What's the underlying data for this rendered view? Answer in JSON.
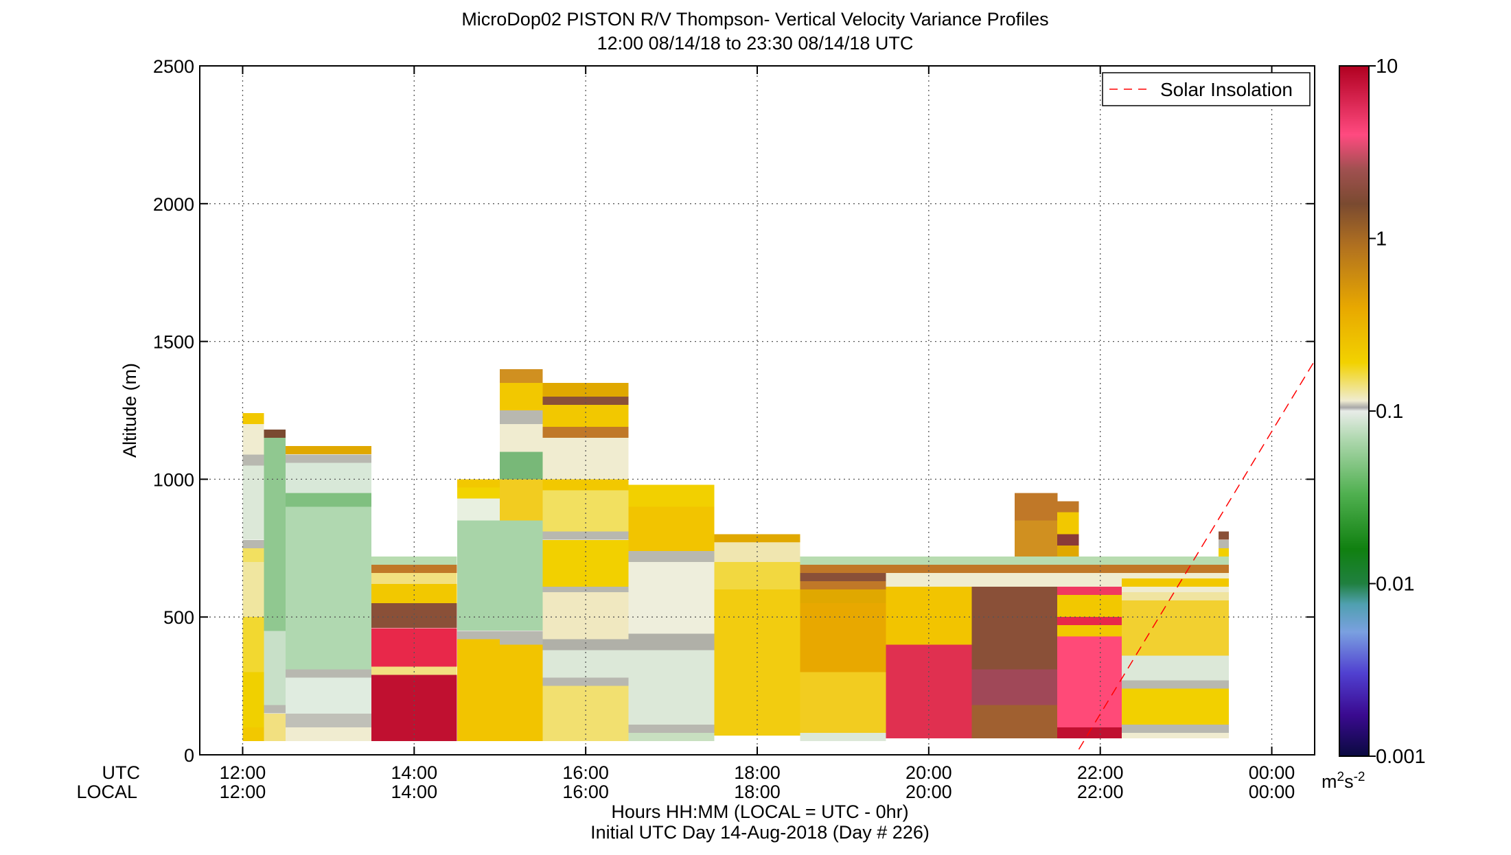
{
  "chart_data": {
    "type": "heatmap",
    "title": "MicroDop02 PISTON R/V Thompson- Vertical Velocity Variance Profiles",
    "subtitle": "12:00 08/14/18 to 23:30 08/14/18  UTC",
    "ylabel": "Altitude (m)",
    "xlabel": "Hours HH:MM  (LOCAL = UTC - 0hr)",
    "xlabel2": "Initial UTC Day 14-Aug-2018 (Day # 226)",
    "row_label_utc": "UTC",
    "row_label_local": "LOCAL",
    "xlim_hours": [
      11.5,
      24.5
    ],
    "ylim": [
      0,
      2500
    ],
    "yticks": [
      0,
      500,
      1000,
      1500,
      2000,
      2500
    ],
    "xticks_utc": [
      "12:00",
      "14:00",
      "16:00",
      "18:00",
      "20:00",
      "22:00",
      "00:00"
    ],
    "xticks_local": [
      "12:00",
      "14:00",
      "16:00",
      "18:00",
      "20:00",
      "22:00",
      "00:00"
    ],
    "xticks_hours": [
      12,
      14,
      16,
      18,
      20,
      22,
      24
    ],
    "grid": true,
    "legend": {
      "position": "top-right",
      "entries": [
        "Solar Insolation"
      ]
    },
    "solar_line": {
      "color": "#ff0000",
      "style": "dashed",
      "points": [
        [
          21.75,
          20
        ],
        [
          24.5,
          1430
        ]
      ]
    },
    "colorbar": {
      "scale": "log",
      "range": [
        0.001,
        10
      ],
      "ticks": [
        "10",
        "1",
        "0.1",
        "0.01",
        "0.001"
      ],
      "unit": "m2s-2",
      "unit_base": "m",
      "unit_sup1": "2",
      "unit_mid": "s",
      "unit_sup2": "-2",
      "stops": [
        {
          "p": 0.0,
          "color": "#0a0a40"
        },
        {
          "p": 0.06,
          "color": "#3a0a90"
        },
        {
          "p": 0.12,
          "color": "#5040d0"
        },
        {
          "p": 0.18,
          "color": "#7aa0e0"
        },
        {
          "p": 0.22,
          "color": "#50a0b0"
        },
        {
          "p": 0.25,
          "color": "#208040"
        },
        {
          "p": 0.3,
          "color": "#108010"
        },
        {
          "p": 0.38,
          "color": "#50b050"
        },
        {
          "p": 0.46,
          "color": "#b0d8b0"
        },
        {
          "p": 0.5,
          "color": "#e8ece8"
        },
        {
          "p": 0.505,
          "color": "#a8a8a8"
        },
        {
          "p": 0.515,
          "color": "#f0ecd0"
        },
        {
          "p": 0.57,
          "color": "#f2d200"
        },
        {
          "p": 0.65,
          "color": "#e8a800"
        },
        {
          "p": 0.74,
          "color": "#b07020"
        },
        {
          "p": 0.8,
          "color": "#7a4a30"
        },
        {
          "p": 0.85,
          "color": "#a05050"
        },
        {
          "p": 0.9,
          "color": "#ff4a80"
        },
        {
          "p": 1.0,
          "color": "#b00020"
        }
      ]
    },
    "columns": [
      {
        "t0": 12.0,
        "t1": 12.25,
        "top": 1240,
        "cells": [
          {
            "y0": 50,
            "y1": 100,
            "c": "#f2c800"
          },
          {
            "y0": 100,
            "y1": 300,
            "c": "#f0d000"
          },
          {
            "y0": 300,
            "y1": 500,
            "c": "#f2d830"
          },
          {
            "y0": 500,
            "y1": 700,
            "c": "#f0e6a0"
          },
          {
            "y0": 700,
            "y1": 750,
            "c": "#f2e060"
          },
          {
            "y0": 750,
            "y1": 780,
            "c": "#b8b8b0"
          },
          {
            "y0": 780,
            "y1": 1050,
            "c": "#dce8d8"
          },
          {
            "y0": 1050,
            "y1": 1090,
            "c": "#b8b8b0"
          },
          {
            "y0": 1090,
            "y1": 1200,
            "c": "#f0ecd0"
          },
          {
            "y0": 1200,
            "y1": 1240,
            "c": "#f2c800"
          }
        ]
      },
      {
        "t0": 12.25,
        "t1": 12.5,
        "top": 1180,
        "cells": [
          {
            "y0": 50,
            "y1": 150,
            "c": "#f2e080"
          },
          {
            "y0": 150,
            "y1": 180,
            "c": "#b8b8b0"
          },
          {
            "y0": 180,
            "y1": 450,
            "c": "#c8e0c8"
          },
          {
            "y0": 450,
            "y1": 1150,
            "c": "#90c890"
          },
          {
            "y0": 1150,
            "y1": 1180,
            "c": "#7a4a30"
          }
        ]
      },
      {
        "t0": 12.5,
        "t1": 13.5,
        "top": 1120,
        "cells": [
          {
            "y0": 50,
            "y1": 100,
            "c": "#f0ecd0"
          },
          {
            "y0": 100,
            "y1": 150,
            "c": "#c0c0b8"
          },
          {
            "y0": 150,
            "y1": 280,
            "c": "#e0ece0"
          },
          {
            "y0": 280,
            "y1": 310,
            "c": "#b8b8b0"
          },
          {
            "y0": 310,
            "y1": 900,
            "c": "#b0d8b0"
          },
          {
            "y0": 900,
            "y1": 950,
            "c": "#80c080"
          },
          {
            "y0": 950,
            "y1": 1060,
            "c": "#d8e8d8"
          },
          {
            "y0": 1060,
            "y1": 1090,
            "c": "#b8b8b0"
          },
          {
            "y0": 1090,
            "y1": 1120,
            "c": "#e0a800"
          }
        ]
      },
      {
        "t0": 13.5,
        "t1": 14.5,
        "top": 720,
        "cells": [
          {
            "y0": 50,
            "y1": 290,
            "c": "#c01030"
          },
          {
            "y0": 290,
            "y1": 320,
            "c": "#f2e080"
          },
          {
            "y0": 320,
            "y1": 460,
            "c": "#e8284a"
          },
          {
            "y0": 460,
            "y1": 550,
            "c": "#8a5038"
          },
          {
            "y0": 550,
            "y1": 620,
            "c": "#f2c800"
          },
          {
            "y0": 620,
            "y1": 660,
            "c": "#f2e080"
          },
          {
            "y0": 660,
            "y1": 690,
            "c": "#c07828"
          },
          {
            "y0": 690,
            "y1": 720,
            "c": "#b8dcb0"
          }
        ]
      },
      {
        "t0": 14.5,
        "t1": 15.0,
        "top": 1000,
        "cells": [
          {
            "y0": 50,
            "y1": 420,
            "c": "#f2c400"
          },
          {
            "y0": 420,
            "y1": 450,
            "c": "#b8b8b0"
          },
          {
            "y0": 450,
            "y1": 850,
            "c": "#a8d4a8"
          },
          {
            "y0": 850,
            "y1": 930,
            "c": "#e8f0e0"
          },
          {
            "y0": 930,
            "y1": 970,
            "c": "#f2d400"
          },
          {
            "y0": 970,
            "y1": 1000,
            "c": "#f2c800"
          }
        ]
      },
      {
        "t0": 15.0,
        "t1": 15.5,
        "top": 1400,
        "cells": [
          {
            "y0": 50,
            "y1": 400,
            "c": "#f2c400"
          },
          {
            "y0": 400,
            "y1": 450,
            "c": "#b8b8b0"
          },
          {
            "y0": 450,
            "y1": 850,
            "c": "#a8d4a8"
          },
          {
            "y0": 850,
            "y1": 1000,
            "c": "#f2cc20"
          },
          {
            "y0": 1000,
            "y1": 1100,
            "c": "#78b878"
          },
          {
            "y0": 1100,
            "y1": 1200,
            "c": "#f0ecd0"
          },
          {
            "y0": 1200,
            "y1": 1250,
            "c": "#b8b8b0"
          },
          {
            "y0": 1250,
            "y1": 1350,
            "c": "#f2c800"
          },
          {
            "y0": 1350,
            "y1": 1400,
            "c": "#d09020"
          }
        ]
      },
      {
        "t0": 15.5,
        "t1": 16.5,
        "top": 1350,
        "cells": [
          {
            "y0": 50,
            "y1": 250,
            "c": "#f2e070"
          },
          {
            "y0": 250,
            "y1": 280,
            "c": "#b8b8b0"
          },
          {
            "y0": 280,
            "y1": 380,
            "c": "#dce8d8"
          },
          {
            "y0": 380,
            "y1": 420,
            "c": "#b0b0a8"
          },
          {
            "y0": 420,
            "y1": 590,
            "c": "#f0e8c0"
          },
          {
            "y0": 590,
            "y1": 610,
            "c": "#b8b8b0"
          },
          {
            "y0": 610,
            "y1": 780,
            "c": "#f2d000"
          },
          {
            "y0": 780,
            "y1": 810,
            "c": "#b8b8b0"
          },
          {
            "y0": 810,
            "y1": 960,
            "c": "#f2e060"
          },
          {
            "y0": 960,
            "y1": 1000,
            "c": "#f2c800"
          },
          {
            "y0": 1000,
            "y1": 1150,
            "c": "#f0ecd0"
          },
          {
            "y0": 1150,
            "y1": 1190,
            "c": "#c07828"
          },
          {
            "y0": 1190,
            "y1": 1270,
            "c": "#f2c800"
          },
          {
            "y0": 1270,
            "y1": 1300,
            "c": "#8a5038"
          },
          {
            "y0": 1300,
            "y1": 1350,
            "c": "#e0a800"
          }
        ]
      },
      {
        "t0": 16.5,
        "t1": 17.5,
        "top": 980,
        "cells": [
          {
            "y0": 50,
            "y1": 80,
            "c": "#c8e0c0"
          },
          {
            "y0": 80,
            "y1": 110,
            "c": "#b8b8b0"
          },
          {
            "y0": 110,
            "y1": 380,
            "c": "#dce8d8"
          },
          {
            "y0": 380,
            "y1": 440,
            "c": "#b0b0a8"
          },
          {
            "y0": 440,
            "y1": 700,
            "c": "#eeeedc"
          },
          {
            "y0": 700,
            "y1": 740,
            "c": "#b8b8b0"
          },
          {
            "y0": 740,
            "y1": 900,
            "c": "#f2c400"
          },
          {
            "y0": 900,
            "y1": 980,
            "c": "#f2d000"
          }
        ]
      },
      {
        "t0": 17.5,
        "t1": 18.5,
        "top": 800,
        "cells": [
          {
            "y0": 70,
            "y1": 600,
            "c": "#f2cc10"
          },
          {
            "y0": 600,
            "y1": 700,
            "c": "#f2d840"
          },
          {
            "y0": 700,
            "y1": 770,
            "c": "#f0e6b0"
          },
          {
            "y0": 770,
            "y1": 800,
            "c": "#e0a800"
          }
        ]
      },
      {
        "t0": 18.5,
        "t1": 19.5,
        "top": 720,
        "cells": [
          {
            "y0": 50,
            "y1": 80,
            "c": "#dce8d8"
          },
          {
            "y0": 80,
            "y1": 300,
            "c": "#f2cc20"
          },
          {
            "y0": 300,
            "y1": 550,
            "c": "#e8a800"
          },
          {
            "y0": 550,
            "y1": 600,
            "c": "#e0a800"
          },
          {
            "y0": 600,
            "y1": 630,
            "c": "#c07828"
          },
          {
            "y0": 630,
            "y1": 660,
            "c": "#8a5038"
          },
          {
            "y0": 660,
            "y1": 690,
            "c": "#c07828"
          },
          {
            "y0": 690,
            "y1": 720,
            "c": "#b8dcb0"
          }
        ]
      },
      {
        "t0": 19.5,
        "t1": 20.5,
        "top": 720,
        "cells": [
          {
            "y0": 60,
            "y1": 400,
            "c": "#e03050"
          },
          {
            "y0": 400,
            "y1": 610,
            "c": "#f2c400"
          },
          {
            "y0": 610,
            "y1": 660,
            "c": "#f0ecd0"
          },
          {
            "y0": 660,
            "y1": 690,
            "c": "#c07828"
          },
          {
            "y0": 690,
            "y1": 720,
            "c": "#b8dcb0"
          }
        ]
      },
      {
        "t0": 20.5,
        "t1": 21.0,
        "top": 720,
        "cells": [
          {
            "y0": 60,
            "y1": 180,
            "c": "#a06030"
          },
          {
            "y0": 180,
            "y1": 310,
            "c": "#a04858"
          },
          {
            "y0": 310,
            "y1": 610,
            "c": "#8a5038"
          },
          {
            "y0": 610,
            "y1": 660,
            "c": "#f0ecd0"
          },
          {
            "y0": 660,
            "y1": 690,
            "c": "#c07828"
          },
          {
            "y0": 690,
            "y1": 720,
            "c": "#b8dcb0"
          }
        ]
      },
      {
        "t0": 21.0,
        "t1": 21.5,
        "top": 950,
        "cells": [
          {
            "y0": 60,
            "y1": 180,
            "c": "#a06030"
          },
          {
            "y0": 180,
            "y1": 310,
            "c": "#a04858"
          },
          {
            "y0": 310,
            "y1": 610,
            "c": "#8a5038"
          },
          {
            "y0": 610,
            "y1": 660,
            "c": "#f0ecd0"
          },
          {
            "y0": 660,
            "y1": 690,
            "c": "#c07828"
          },
          {
            "y0": 690,
            "y1": 720,
            "c": "#b8dcb0"
          },
          {
            "y0": 720,
            "y1": 850,
            "c": "#d09020"
          },
          {
            "y0": 850,
            "y1": 950,
            "c": "#c07828"
          }
        ]
      },
      {
        "t0": 21.5,
        "t1": 22.25,
        "top": 720,
        "cells": [
          {
            "y0": 60,
            "y1": 100,
            "c": "#c01030"
          },
          {
            "y0": 100,
            "y1": 430,
            "c": "#ff4a78"
          },
          {
            "y0": 430,
            "y1": 470,
            "c": "#f2c800"
          },
          {
            "y0": 470,
            "y1": 500,
            "c": "#e8284a"
          },
          {
            "y0": 500,
            "y1": 580,
            "c": "#f2c800"
          },
          {
            "y0": 580,
            "y1": 610,
            "c": "#f03860"
          },
          {
            "y0": 610,
            "y1": 660,
            "c": "#f0ecd0"
          },
          {
            "y0": 660,
            "y1": 690,
            "c": "#c07828"
          },
          {
            "y0": 690,
            "y1": 720,
            "c": "#b8dcb0"
          }
        ]
      },
      {
        "t0": 21.5,
        "t1": 21.75,
        "top": 920,
        "cells": [
          {
            "y0": 720,
            "y1": 760,
            "c": "#e0a800"
          },
          {
            "y0": 760,
            "y1": 800,
            "c": "#8a3a38"
          },
          {
            "y0": 800,
            "y1": 880,
            "c": "#f2c800"
          },
          {
            "y0": 880,
            "y1": 920,
            "c": "#c07828"
          }
        ]
      },
      {
        "t0": 22.25,
        "t1": 23.5,
        "top": 720,
        "cells": [
          {
            "y0": 60,
            "y1": 80,
            "c": "#f0ecd0"
          },
          {
            "y0": 80,
            "y1": 110,
            "c": "#b8b8b0"
          },
          {
            "y0": 110,
            "y1": 240,
            "c": "#f2d000"
          },
          {
            "y0": 240,
            "y1": 270,
            "c": "#b8b8b0"
          },
          {
            "y0": 270,
            "y1": 360,
            "c": "#dce8d8"
          },
          {
            "y0": 360,
            "y1": 560,
            "c": "#f2d030"
          },
          {
            "y0": 560,
            "y1": 590,
            "c": "#f0e4a0"
          },
          {
            "y0": 590,
            "y1": 610,
            "c": "#f0ecd0"
          },
          {
            "y0": 610,
            "y1": 640,
            "c": "#f2c800"
          },
          {
            "y0": 640,
            "y1": 660,
            "c": "#f0ecd0"
          },
          {
            "y0": 660,
            "y1": 690,
            "c": "#c07828"
          },
          {
            "y0": 690,
            "y1": 720,
            "c": "#b8dcb0"
          }
        ]
      },
      {
        "t0": 23.38,
        "t1": 23.5,
        "top": 810,
        "cells": [
          {
            "y0": 720,
            "y1": 750,
            "c": "#f2d000"
          },
          {
            "y0": 750,
            "y1": 780,
            "c": "#b8b8b0"
          },
          {
            "y0": 780,
            "y1": 810,
            "c": "#8a5038"
          }
        ]
      }
    ]
  }
}
